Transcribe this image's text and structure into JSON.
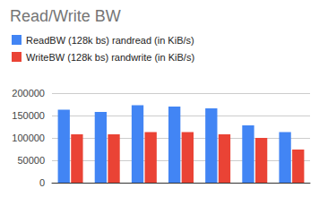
{
  "chart_data": {
    "type": "bar",
    "title": "Read/Write BW",
    "categories": [
      null,
      null,
      null,
      null,
      null,
      null,
      null
    ],
    "series": [
      {
        "name": "ReadBW (128k bs) randread (in KiB/s)",
        "color": "#4285f4",
        "values": [
          163000,
          158000,
          173000,
          170000,
          166000,
          128000,
          113000
        ]
      },
      {
        "name": "WriteBW (128k bs) randwrite (in KiB/s)",
        "color": "#ea4335",
        "values": [
          108000,
          108000,
          113000,
          113000,
          108000,
          100000,
          74000
        ]
      }
    ],
    "ylim": [
      0,
      200000
    ],
    "yticks": [
      0,
      50000,
      100000,
      150000,
      200000
    ],
    "grid": true,
    "legend": "top-left",
    "tick_labels": "y"
  }
}
